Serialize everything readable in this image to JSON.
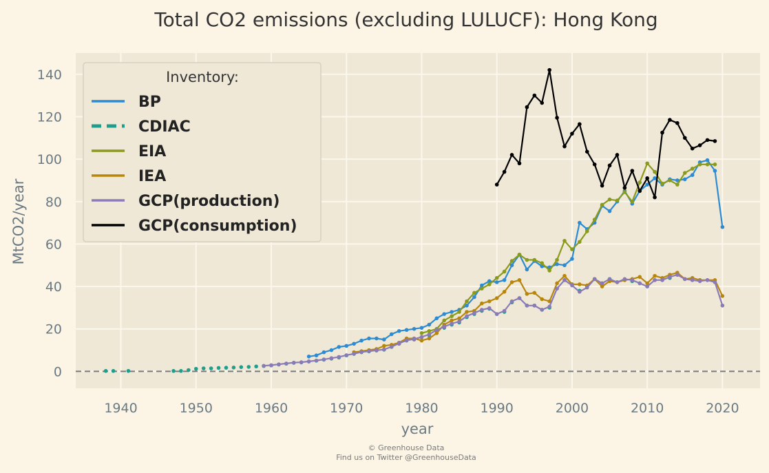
{
  "chart_data": {
    "type": "line",
    "title": "Total CO2 emissions (excluding LULUCF): Hong Kong",
    "xlabel": "year",
    "ylabel": "MtCO2/year",
    "xlim": [
      1934,
      2025
    ],
    "ylim": [
      -8,
      150
    ],
    "xticks": [
      1940,
      1950,
      1960,
      1970,
      1980,
      1990,
      2000,
      2010,
      2020
    ],
    "yticks": [
      0,
      20,
      40,
      60,
      80,
      100,
      120,
      140
    ],
    "grid": true,
    "legend_title": "Inventory:",
    "legend_position": "top-left",
    "colors": {
      "background": "#fcf5e5",
      "plot_background": "#efe8d6",
      "grid": "#fbf7ec",
      "zero_line": "#7a7a7a"
    },
    "series": [
      {
        "name": "BP",
        "color": "#2d8bd1",
        "dash": "solid",
        "x": [
          1965,
          1966,
          1967,
          1968,
          1969,
          1970,
          1971,
          1972,
          1973,
          1974,
          1975,
          1976,
          1977,
          1978,
          1979,
          1980,
          1981,
          1982,
          1983,
          1984,
          1985,
          1986,
          1987,
          1988,
          1989,
          1990,
          1991,
          1992,
          1993,
          1994,
          1995,
          1996,
          1997,
          1998,
          1999,
          2000,
          2001,
          2002,
          2003,
          2004,
          2005,
          2006,
          2007,
          2008,
          2009,
          2010,
          2011,
          2012,
          2013,
          2014,
          2015,
          2016,
          2017,
          2018,
          2019,
          2020
        ],
        "y": [
          7,
          7.5,
          9,
          10,
          11.5,
          12,
          13,
          14.5,
          15.5,
          15.5,
          15,
          17.5,
          19,
          19.5,
          20,
          20.5,
          22,
          25,
          27,
          28,
          29,
          31,
          35,
          40.5,
          42.5,
          42,
          43,
          50,
          55,
          48,
          52,
          49.5,
          49,
          50.5,
          50,
          53,
          70,
          67,
          70,
          78,
          75.5,
          80,
          85,
          79,
          85,
          88,
          91,
          88,
          90.5,
          90,
          90.5,
          92.5,
          98.5,
          99.5,
          94.5,
          68
        ]
      },
      {
        "name": "CDIAC",
        "color": "#1f9e8c",
        "dash": "dashed",
        "x": [
          1938,
          1939,
          1941,
          1947,
          1948,
          1949,
          1950,
          1951,
          1952,
          1953,
          1954,
          1955,
          1956,
          1957,
          1958,
          1959,
          1960,
          1961,
          1962,
          1963,
          1964,
          1965,
          1966,
          1967,
          1968,
          1969,
          1970,
          1971,
          1972,
          1973,
          1974,
          1975,
          1976,
          1977,
          1978,
          1979,
          1980,
          1981,
          1982,
          1983,
          1984,
          1985,
          1986,
          1987,
          1988,
          1989,
          1990,
          1991,
          1992,
          1993,
          1994,
          1995,
          1996,
          1997,
          1998,
          1999,
          2000,
          2001,
          2002,
          2003,
          2004,
          2005,
          2006,
          2007,
          2008,
          2009,
          2010,
          2011,
          2012,
          2013,
          2014,
          2015,
          2016,
          2017
        ],
        "y": [
          0.2,
          0.2,
          0.2,
          0.2,
          0.2,
          0.6,
          1.2,
          1.4,
          1.4,
          1.6,
          1.7,
          1.8,
          2,
          2.1,
          2.3,
          2.5,
          2.8,
          3.2,
          3.6,
          4,
          4.2,
          4.6,
          5,
          5.5,
          6,
          6.5,
          7.5,
          8.2,
          9,
          9.4,
          9.8,
          10.2,
          11.5,
          13,
          14.5,
          15,
          16,
          17,
          19,
          20.5,
          22,
          23,
          25.5,
          27,
          28.5,
          29.5,
          27,
          28,
          32.5,
          34.5,
          31,
          31,
          29,
          30,
          39,
          43,
          41,
          38,
          40,
          43.5,
          41.5,
          43.5,
          42,
          43,
          42.5,
          41.5,
          40,
          43,
          43,
          44,
          45.5,
          43.5,
          43,
          43
        ]
      },
      {
        "name": "EIA",
        "color": "#8a9a1b",
        "dash": "solid",
        "x": [
          1980,
          1981,
          1982,
          1983,
          1984,
          1985,
          1986,
          1987,
          1988,
          1989,
          1990,
          1991,
          1992,
          1993,
          1994,
          1995,
          1996,
          1997,
          1998,
          1999,
          2000,
          2001,
          2002,
          2003,
          2004,
          2005,
          2006,
          2007,
          2008,
          2009,
          2010,
          2011,
          2012,
          2013,
          2014,
          2015,
          2016,
          2017,
          2018,
          2019
        ],
        "y": [
          18,
          19,
          20,
          24,
          26,
          28,
          33,
          37,
          39,
          41,
          44,
          47,
          52,
          55,
          52.5,
          52.5,
          51,
          47.5,
          52.5,
          61.5,
          57.5,
          61,
          66,
          71.5,
          78.5,
          81,
          80.5,
          84.5,
          80,
          89,
          98,
          94,
          88.5,
          90,
          88,
          93.5,
          95.5,
          97.5,
          97.5,
          97.5
        ]
      },
      {
        "name": "IEA",
        "color": "#b8860b",
        "dash": "solid",
        "x": [
          1971,
          1972,
          1973,
          1974,
          1975,
          1976,
          1977,
          1978,
          1979,
          1980,
          1981,
          1982,
          1983,
          1984,
          1985,
          1986,
          1987,
          1988,
          1989,
          1990,
          1991,
          1992,
          1993,
          1994,
          1995,
          1996,
          1997,
          1998,
          1999,
          2000,
          2001,
          2002,
          2003,
          2004,
          2005,
          2006,
          2007,
          2008,
          2009,
          2010,
          2011,
          2012,
          2013,
          2014,
          2015,
          2016,
          2017,
          2018,
          2019,
          2020
        ],
        "y": [
          9,
          9.5,
          10,
          10.5,
          12,
          12.5,
          13.5,
          15.5,
          15.5,
          14.5,
          15.5,
          18,
          22,
          24,
          25,
          28,
          28.5,
          32,
          33,
          34.5,
          37.5,
          42,
          43,
          36.5,
          37,
          34,
          33,
          41.5,
          45,
          41,
          41,
          40.5,
          43.5,
          40,
          42.5,
          42,
          43,
          43.5,
          44.5,
          41.5,
          45,
          44,
          45.5,
          46.5,
          43.5,
          44,
          43,
          43,
          43,
          35.5
        ]
      },
      {
        "name": "GCP(production)",
        "color": "#8a7ab8",
        "dash": "solid",
        "x": [
          1959,
          1960,
          1961,
          1962,
          1963,
          1964,
          1965,
          1966,
          1967,
          1968,
          1969,
          1970,
          1971,
          1972,
          1973,
          1974,
          1975,
          1976,
          1977,
          1978,
          1979,
          1980,
          1981,
          1982,
          1983,
          1984,
          1985,
          1986,
          1987,
          1988,
          1989,
          1990,
          1991,
          1992,
          1993,
          1994,
          1995,
          1996,
          1997,
          1998,
          1999,
          2000,
          2001,
          2002,
          2003,
          2004,
          2005,
          2006,
          2007,
          2008,
          2009,
          2010,
          2011,
          2012,
          2013,
          2014,
          2015,
          2016,
          2017,
          2018,
          2019,
          2020
        ],
        "y": [
          2.6,
          2.9,
          3.3,
          3.7,
          4.1,
          4.3,
          4.7,
          5.1,
          5.6,
          6.2,
          6.8,
          7.6,
          8.3,
          9.1,
          9.5,
          9.9,
          10.3,
          11.6,
          13.2,
          14.6,
          15.2,
          16.2,
          17.4,
          19.5,
          21,
          22.5,
          23.5,
          26,
          27.5,
          29,
          29.8,
          27,
          28.5,
          33,
          34.5,
          31,
          31,
          29,
          30.5,
          39,
          43,
          40.5,
          37.5,
          39.5,
          43.5,
          41.5,
          43.5,
          42,
          43.5,
          43,
          41.5,
          40,
          43,
          43,
          44.5,
          45.5,
          43.5,
          43,
          42.5,
          43,
          42,
          31
        ]
      },
      {
        "name": "GCP(consumption)",
        "color": "#000000",
        "dash": "solid",
        "x": [
          1990,
          1991,
          1992,
          1993,
          1994,
          1995,
          1996,
          1997,
          1998,
          1999,
          2000,
          2001,
          2002,
          2003,
          2004,
          2005,
          2006,
          2007,
          2008,
          2009,
          2010,
          2011,
          2012,
          2013,
          2014,
          2015,
          2016,
          2017,
          2018,
          2019
        ],
        "y": [
          88,
          94,
          102,
          98,
          124.5,
          130,
          126.5,
          142,
          119.5,
          106,
          112,
          116.5,
          103.5,
          97.5,
          87.5,
          97,
          102,
          86.5,
          94.5,
          85,
          91,
          82,
          112.5,
          118.5,
          117,
          110,
          105,
          106.5,
          109,
          108.5
        ]
      }
    ]
  },
  "footer": {
    "line1": "© Greenhouse Data",
    "line2": "Find us on Twitter @GreenhouseData"
  }
}
